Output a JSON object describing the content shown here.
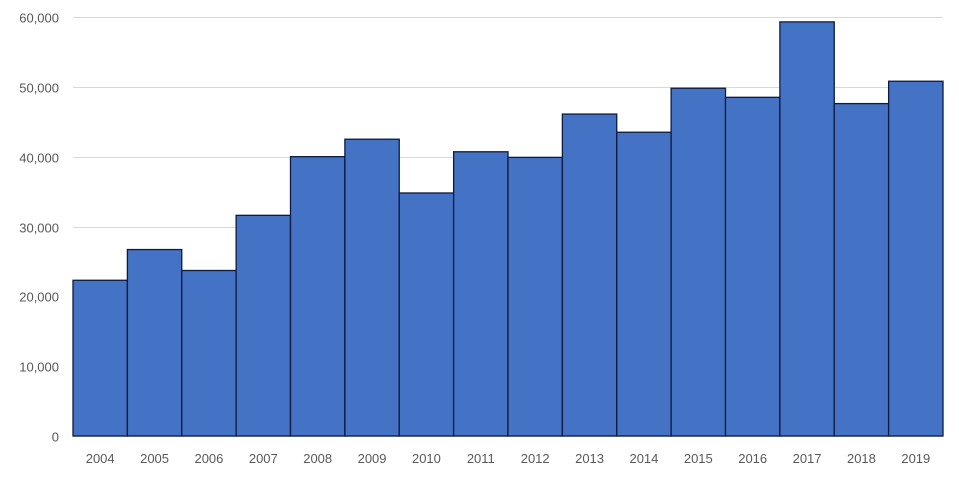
{
  "chart_data": {
    "type": "bar",
    "title": "",
    "xlabel": "",
    "ylabel": "",
    "categories": [
      "2004",
      "2005",
      "2006",
      "2007",
      "2008",
      "2009",
      "2010",
      "2011",
      "2012",
      "2013",
      "2014",
      "2015",
      "2016",
      "2017",
      "2018",
      "2019"
    ],
    "values": [
      22300,
      26700,
      23700,
      31600,
      40000,
      42500,
      34800,
      40700,
      39900,
      46100,
      43500,
      49800,
      48500,
      59300,
      47600,
      50800
    ],
    "ylim": [
      0,
      60000
    ],
    "yticks": [
      0,
      10000,
      20000,
      30000,
      40000,
      50000,
      60000
    ],
    "ytick_labels": [
      "0",
      "10,000",
      "20,000",
      "30,000",
      "40,000",
      "50,000",
      "60,000"
    ],
    "grid": true,
    "legend": "none",
    "bar_gap": 0,
    "colors": {
      "bar_fill": "#4472C4",
      "bar_stroke": "#0D1B3E",
      "grid": "#D9D9D9",
      "axis": "#D9D9D9",
      "text": "#595959"
    }
  }
}
